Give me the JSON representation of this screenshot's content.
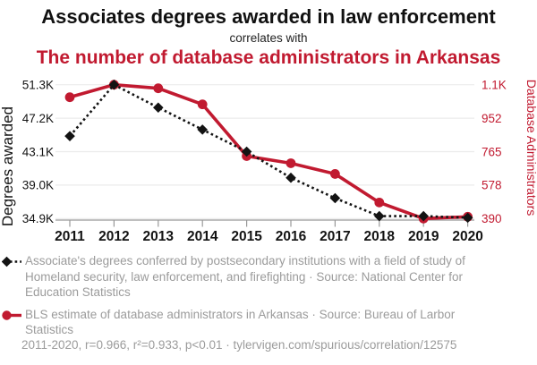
{
  "header": {
    "title": "Associates degrees awarded in law enforcement",
    "connector": "correlates with",
    "subtitle": "The number of database administrators in Arkansas"
  },
  "colors": {
    "series_black": "#131313",
    "series_red": "#c11a30",
    "grid": "#ebebeb",
    "axis": "#999999",
    "muted_text": "#9b9b9b"
  },
  "chart_data": {
    "type": "line",
    "x": [
      2011,
      2012,
      2013,
      2014,
      2015,
      2016,
      2017,
      2018,
      2019,
      2020
    ],
    "series": [
      {
        "name": "Associate's degrees in law enforcement",
        "axis": "left",
        "color": "#131313",
        "marker": "diamond",
        "line_style": "dotted",
        "values": [
          45000,
          51300,
          48500,
          45800,
          43100,
          39900,
          37400,
          35200,
          35200,
          35000
        ]
      },
      {
        "name": "Database administrators in Arkansas",
        "axis": "right",
        "color": "#c11a30",
        "marker": "circle",
        "line_style": "solid",
        "values": [
          1070,
          1140,
          1120,
          1030,
          740,
          700,
          640,
          480,
          390,
          400
        ]
      }
    ],
    "left_axis": {
      "label": "Degrees awarded",
      "tick_labels": [
        "51.3K",
        "47.2K",
        "43.1K",
        "39.0K",
        "34.9K"
      ],
      "tick_values": [
        51300,
        47200,
        43100,
        39000,
        34900
      ],
      "range": [
        34900,
        51300
      ]
    },
    "right_axis": {
      "label": "Database Administrators",
      "tick_labels": [
        "1.1K",
        "952",
        "765",
        "578",
        "390"
      ],
      "tick_values": [
        1140,
        952,
        765,
        578,
        390
      ],
      "range": [
        390,
        1140
      ]
    },
    "grid": true,
    "legend_position": "bottom"
  },
  "legend": [
    {
      "text": "Associate's degrees conferred by postsecondary institutions with a field of study of Homeland security, law enforcement, and firefighting · Source: National Center for Education Statistics"
    },
    {
      "text": "BLS estimate of database administrators in Arkansas · Source: Bureau of Larbor Statistics"
    }
  ],
  "footer": {
    "text": "2011-2020, r=0.966, r²=0.933, p<0.01 · tylervigen.com/spurious/correlation/12575"
  }
}
